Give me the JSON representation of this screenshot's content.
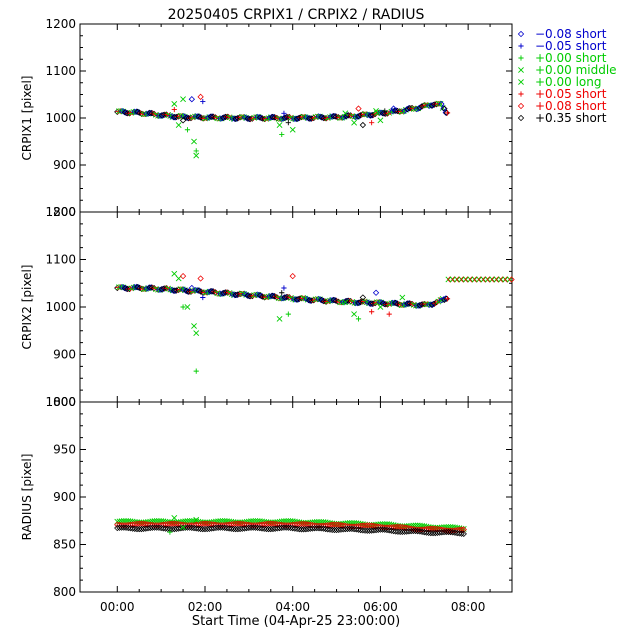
{
  "chart_data": {
    "type": "scatter",
    "title": "20250405  CRPIX1  /  CRPIX2  /  RADIUS",
    "xlabel": "Start Time (04-Apr-25 23:00:00)",
    "x_units": "hours since start",
    "xlim": [
      -0.85,
      9.0
    ],
    "xticks": [
      0,
      2,
      4,
      6,
      8
    ],
    "xtick_labels": [
      "00:00",
      "02:00",
      "04:00",
      "06:00",
      "08:00"
    ],
    "legend": [
      {
        "symbol": "◇",
        "label": "−0.08 short",
        "color": "#0000cc"
      },
      {
        "symbol": "+",
        "label": "−0.05 short",
        "color": "#0000cc"
      },
      {
        "symbol": "+",
        "label": "+0.00 short",
        "color": "#00cc00"
      },
      {
        "symbol": "×",
        "label": "+0.00 middle",
        "color": "#00cc00"
      },
      {
        "symbol": "×",
        "label": "+0.00 long",
        "color": "#00cc00"
      },
      {
        "symbol": "+",
        "label": "+0.05 short",
        "color": "#ee0000"
      },
      {
        "symbol": "◇",
        "label": "+0.08 short",
        "color": "#ee0000"
      },
      {
        "symbol": "◇",
        "label": "+0.35 short",
        "color": "#000000"
      }
    ],
    "panels": [
      {
        "ylabel": "CRPIX1 [pixel]",
        "ylim": [
          800,
          1200
        ],
        "yticks": [
          800,
          900,
          1000,
          1100,
          1200
        ],
        "trend": [
          [
            0,
            1013
          ],
          [
            0.5,
            1011
          ],
          [
            1.0,
            1006
          ],
          [
            1.5,
            1002
          ],
          [
            2.0,
            1001
          ],
          [
            3.0,
            1000
          ],
          [
            4.0,
            1000
          ],
          [
            5.0,
            1002
          ],
          [
            5.5,
            1005
          ],
          [
            6.0,
            1010
          ],
          [
            6.5,
            1016
          ],
          [
            7.0,
            1025
          ],
          [
            7.2,
            1030
          ],
          [
            7.35,
            1028
          ],
          [
            7.5,
            1012
          ]
        ],
        "outliers": [
          {
            "x": 1.3,
            "y": 1030,
            "s": "x",
            "c": "#00cc00"
          },
          {
            "x": 1.4,
            "y": 985,
            "s": "x",
            "c": "#00cc00"
          },
          {
            "x": 1.5,
            "y": 1040,
            "s": "x",
            "c": "#00cc00"
          },
          {
            "x": 1.6,
            "y": 975,
            "s": "+",
            "c": "#00cc00"
          },
          {
            "x": 1.7,
            "y": 1040,
            "s": "d",
            "c": "#0000cc"
          },
          {
            "x": 1.75,
            "y": 950,
            "s": "x",
            "c": "#00cc00"
          },
          {
            "x": 1.8,
            "y": 930,
            "s": "+",
            "c": "#00cc00"
          },
          {
            "x": 1.8,
            "y": 920,
            "s": "x",
            "c": "#00cc00"
          },
          {
            "x": 1.9,
            "y": 1045,
            "s": "d",
            "c": "#ee0000"
          },
          {
            "x": 1.95,
            "y": 1035,
            "s": "+",
            "c": "#0000cc"
          },
          {
            "x": 1.5,
            "y": 995,
            "s": "d",
            "c": "#000000"
          },
          {
            "x": 1.3,
            "y": 1018,
            "s": "+",
            "c": "#ee0000"
          },
          {
            "x": 3.7,
            "y": 985,
            "s": "x",
            "c": "#00cc00"
          },
          {
            "x": 3.8,
            "y": 1010,
            "s": "+",
            "c": "#0000cc"
          },
          {
            "x": 3.9,
            "y": 990,
            "s": "+",
            "c": "#000000"
          },
          {
            "x": 4.0,
            "y": 975,
            "s": "x",
            "c": "#00cc00"
          },
          {
            "x": 3.75,
            "y": 965,
            "s": "+",
            "c": "#00cc00"
          },
          {
            "x": 5.2,
            "y": 1010,
            "s": "x",
            "c": "#00cc00"
          },
          {
            "x": 5.4,
            "y": 990,
            "s": "x",
            "c": "#00cc00"
          },
          {
            "x": 5.5,
            "y": 1020,
            "s": "d",
            "c": "#ee0000"
          },
          {
            "x": 5.6,
            "y": 985,
            "s": "d",
            "c": "#000000"
          },
          {
            "x": 5.8,
            "y": 990,
            "s": "+",
            "c": "#ee0000"
          },
          {
            "x": 5.9,
            "y": 1015,
            "s": "x",
            "c": "#00cc00"
          },
          {
            "x": 6.0,
            "y": 995,
            "s": "x",
            "c": "#00cc00"
          },
          {
            "x": 6.1,
            "y": 1015,
            "s": "+",
            "c": "#000000"
          },
          {
            "x": 6.3,
            "y": 1020,
            "s": "d",
            "c": "#0000cc"
          }
        ]
      },
      {
        "ylabel": "CRPIX2 [pixel]",
        "ylim": [
          800,
          1200
        ],
        "yticks": [
          800,
          900,
          1000,
          1100,
          1200
        ],
        "trend": [
          [
            0,
            1040
          ],
          [
            0.5,
            1040
          ],
          [
            1.0,
            1038
          ],
          [
            1.5,
            1035
          ],
          [
            2.0,
            1032
          ],
          [
            3.0,
            1025
          ],
          [
            4.0,
            1018
          ],
          [
            5.0,
            1012
          ],
          [
            6.0,
            1008
          ],
          [
            7.0,
            1004
          ],
          [
            7.3,
            1010
          ],
          [
            7.5,
            1020
          ]
        ],
        "extra": [
          [
            7.55,
            1058
          ],
          [
            7.65,
            1058
          ],
          [
            7.75,
            1058
          ],
          [
            7.85,
            1058
          ],
          [
            7.95,
            1058
          ],
          [
            8.05,
            1058
          ],
          [
            8.15,
            1058
          ],
          [
            8.25,
            1058
          ],
          [
            8.35,
            1058
          ],
          [
            8.45,
            1058
          ],
          [
            8.55,
            1058
          ],
          [
            8.65,
            1058
          ],
          [
            8.75,
            1058
          ],
          [
            8.85,
            1058
          ],
          [
            8.95,
            1058
          ]
        ],
        "outliers": [
          {
            "x": 1.3,
            "y": 1070,
            "s": "x",
            "c": "#00cc00"
          },
          {
            "x": 1.4,
            "y": 1060,
            "s": "x",
            "c": "#00cc00"
          },
          {
            "x": 1.5,
            "y": 1065,
            "s": "d",
            "c": "#ee0000"
          },
          {
            "x": 1.6,
            "y": 1000,
            "s": "x",
            "c": "#00cc00"
          },
          {
            "x": 1.7,
            "y": 1040,
            "s": "d",
            "c": "#0000cc"
          },
          {
            "x": 1.75,
            "y": 960,
            "s": "x",
            "c": "#00cc00"
          },
          {
            "x": 1.8,
            "y": 945,
            "s": "x",
            "c": "#00cc00"
          },
          {
            "x": 1.8,
            "y": 865,
            "s": "+",
            "c": "#00cc00"
          },
          {
            "x": 1.9,
            "y": 1060,
            "s": "d",
            "c": "#ee0000"
          },
          {
            "x": 1.95,
            "y": 1020,
            "s": "+",
            "c": "#0000cc"
          },
          {
            "x": 1.5,
            "y": 1000,
            "s": "+",
            "c": "#00cc00"
          },
          {
            "x": 3.7,
            "y": 975,
            "s": "x",
            "c": "#00cc00"
          },
          {
            "x": 3.8,
            "y": 1040,
            "s": "+",
            "c": "#0000cc"
          },
          {
            "x": 3.9,
            "y": 985,
            "s": "+",
            "c": "#00cc00"
          },
          {
            "x": 4.0,
            "y": 1065,
            "s": "d",
            "c": "#ee0000"
          },
          {
            "x": 3.75,
            "y": 1030,
            "s": "+",
            "c": "#000000"
          },
          {
            "x": 5.2,
            "y": 1010,
            "s": "x",
            "c": "#00cc00"
          },
          {
            "x": 5.4,
            "y": 985,
            "s": "x",
            "c": "#00cc00"
          },
          {
            "x": 5.5,
            "y": 975,
            "s": "+",
            "c": "#00cc00"
          },
          {
            "x": 5.6,
            "y": 1020,
            "s": "d",
            "c": "#000000"
          },
          {
            "x": 5.8,
            "y": 990,
            "s": "+",
            "c": "#ee0000"
          },
          {
            "x": 5.9,
            "y": 1030,
            "s": "d",
            "c": "#0000cc"
          },
          {
            "x": 6.0,
            "y": 1000,
            "s": "x",
            "c": "#00cc00"
          },
          {
            "x": 6.2,
            "y": 985,
            "s": "+",
            "c": "#ee0000"
          },
          {
            "x": 6.5,
            "y": 1020,
            "s": "x",
            "c": "#00cc00"
          }
        ]
      },
      {
        "ylabel": "RADIUS [pixel]",
        "ylim": [
          800,
          1000
        ],
        "yticks": [
          800,
          850,
          900,
          950,
          1000
        ],
        "bands": [
          {
            "color": "#00cc00",
            "points": [
              [
                0,
                874
              ],
              [
                2,
                874
              ],
              [
                4,
                874
              ],
              [
                6,
                871
              ],
              [
                7,
                869
              ],
              [
                7.9,
                867
              ]
            ]
          },
          {
            "color": "#ee0000",
            "points": [
              [
                0,
                871
              ],
              [
                2,
                871
              ],
              [
                4,
                871
              ],
              [
                6,
                869
              ],
              [
                7,
                866
              ],
              [
                7.9,
                865
              ]
            ]
          },
          {
            "color": "#000000",
            "points": [
              [
                0,
                867
              ],
              [
                2,
                867
              ],
              [
                4,
                867
              ],
              [
                6,
                865
              ],
              [
                7,
                863
              ],
              [
                7.9,
                862
              ]
            ]
          }
        ],
        "outliers": [
          {
            "x": 1.3,
            "y": 878,
            "s": "x",
            "c": "#00cc00"
          },
          {
            "x": 1.5,
            "y": 868,
            "s": "x",
            "c": "#00cc00"
          },
          {
            "x": 1.2,
            "y": 863,
            "s": "+",
            "c": "#00cc00"
          },
          {
            "x": 1.8,
            "y": 876,
            "s": "x",
            "c": "#00cc00"
          }
        ]
      }
    ]
  }
}
